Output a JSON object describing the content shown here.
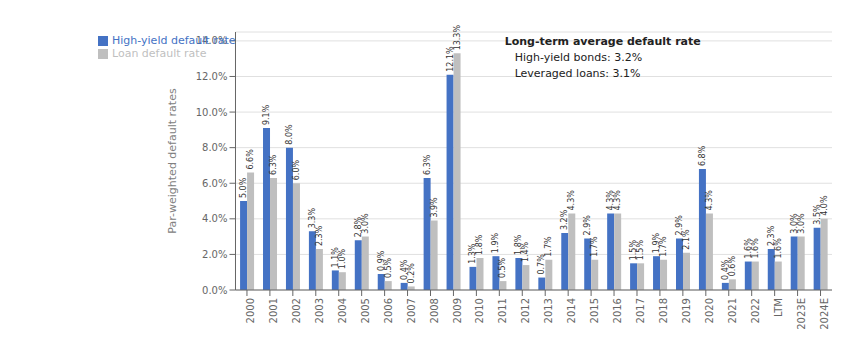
{
  "chart_data": {
    "type": "bar",
    "categories": [
      "2000",
      "2001",
      "2002",
      "2003",
      "2004",
      "2005",
      "2006",
      "2007",
      "2008",
      "2009",
      "2010",
      "2011",
      "2012",
      "2013",
      "2014",
      "2015",
      "2016",
      "2017",
      "2018",
      "2019",
      "2020",
      "2021",
      "2022",
      "LTM",
      "2023E",
      "2024E"
    ],
    "series": [
      {
        "name": "High-yield default rate",
        "color": "#4472C4",
        "values": [
          5.0,
          9.1,
          8.0,
          3.3,
          1.1,
          2.8,
          0.9,
          0.4,
          6.3,
          12.1,
          1.3,
          1.9,
          1.8,
          0.7,
          3.2,
          2.9,
          4.3,
          1.5,
          1.9,
          2.9,
          6.8,
          0.4,
          1.6,
          2.3,
          3.0,
          3.5
        ],
        "value_labels": [
          "5.0%",
          "9.1%",
          "8.0%",
          "3.3%",
          "1.1%",
          "2.8%",
          "0.9%",
          "0.4%",
          "6.3%",
          "12.1%",
          "1.3%",
          "1.9%",
          "1.8%",
          "0.7%",
          "3.2%",
          "2.9%",
          "4.3%",
          "1.5%",
          "1.9%",
          "2.9%",
          "6.8%",
          "0.4%",
          "1.6%",
          "2.3%",
          "3.0%",
          "3.5%"
        ]
      },
      {
        "name": "Loan default rate",
        "color": "#BFBFBF",
        "values": [
          6.6,
          6.3,
          6.0,
          2.3,
          1.0,
          3.0,
          0.5,
          0.2,
          3.9,
          13.3,
          1.8,
          0.5,
          1.4,
          1.7,
          4.3,
          1.7,
          4.3,
          1.5,
          1.7,
          2.1,
          4.3,
          0.6,
          1.6,
          1.6,
          3.0,
          4.0
        ],
        "value_labels": [
          "6.6%",
          "6.3%",
          "6.0%",
          "2.3%",
          "1.0%",
          "3.0%",
          "0.5%",
          "0.2%",
          "3.9%",
          "13.3%",
          "1.8%",
          "0.5%",
          "1.4%",
          "1.7%",
          "4.3%",
          "1.7%",
          "4.3%",
          "1.5%",
          "1.7%",
          "2.1%",
          "4.3%",
          "0.6%",
          "1.6%",
          "1.6%",
          "3.0%",
          "4.0%"
        ]
      }
    ],
    "y_label": "Par-weighted default rates",
    "ylim": [
      0,
      14.5
    ],
    "yticks": [
      {
        "value": 0.0,
        "label": "0.0%"
      },
      {
        "value": 2.0,
        "label": "2.0%"
      },
      {
        "value": 4.0,
        "label": "4.0%"
      },
      {
        "value": 6.0,
        "label": "6.0%"
      },
      {
        "value": 8.0,
        "label": "8.0%"
      },
      {
        "value": 10.0,
        "label": "10.0%"
      },
      {
        "value": 12.0,
        "label": "12.0%"
      },
      {
        "value": 14.0,
        "label": "14.0%"
      }
    ],
    "annotations": [
      "Long-term average default rate",
      "High-yield bonds: 3.2%",
      "Leveraged loans: 3.1%"
    ],
    "grid": true,
    "legend": "upper left",
    "data_labels": true
  }
}
